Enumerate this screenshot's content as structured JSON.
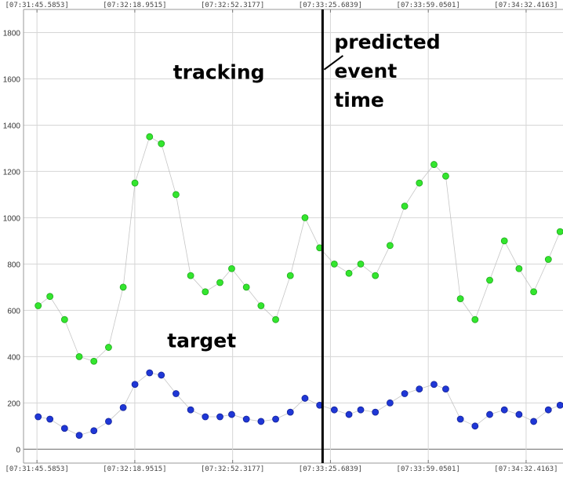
{
  "chart_data": {
    "type": "scatter",
    "title": "",
    "xlabel": "",
    "ylabel": "",
    "x_ticks": [
      "[07:31:45.5853]",
      "[07:32:18.9515]",
      "[07:32:52.3177]",
      "[07:33:25.6839]",
      "[07:33:59.0501]",
      "[07:34:32.4163]"
    ],
    "xlim": [
      "07:31:41",
      "07:34:45"
    ],
    "ylim": [
      -60,
      1900
    ],
    "y_ticks": [
      0,
      200,
      400,
      600,
      800,
      1000,
      1200,
      1400,
      1600,
      1800
    ],
    "grid": true,
    "legend": "none",
    "marker_event_x": "07:33:23",
    "marker_event_label": "predicted event time",
    "series": [
      {
        "name": "tracking",
        "color": "#33e62e",
        "edge_color": "#21a81e",
        "x": [
          "07:31:46",
          "07:31:50",
          "07:31:55",
          "07:32:00",
          "07:32:05",
          "07:32:10",
          "07:32:15",
          "07:32:19",
          "07:32:24",
          "07:32:28",
          "07:32:33",
          "07:32:38",
          "07:32:43",
          "07:32:48",
          "07:32:52",
          "07:32:57",
          "07:33:02",
          "07:33:07",
          "07:33:12",
          "07:33:17",
          "07:33:22",
          "07:33:27",
          "07:33:32",
          "07:33:36",
          "07:33:41",
          "07:33:46",
          "07:33:51",
          "07:33:56",
          "07:34:01",
          "07:34:05",
          "07:34:10",
          "07:34:15",
          "07:34:20",
          "07:34:25",
          "07:34:30",
          "07:34:35",
          "07:34:40",
          "07:34:44"
        ],
        "values": [
          620,
          660,
          560,
          400,
          380,
          440,
          700,
          1150,
          1350,
          1320,
          1100,
          750,
          680,
          720,
          780,
          700,
          620,
          560,
          750,
          1000,
          870,
          800,
          760,
          800,
          750,
          880,
          1050,
          1150,
          1230,
          1180,
          650,
          560,
          730,
          900,
          780,
          680,
          820,
          940
        ]
      },
      {
        "name": "target",
        "color": "#1f37d6",
        "edge_color": "#14239a",
        "x": [
          "07:31:46",
          "07:31:50",
          "07:31:55",
          "07:32:00",
          "07:32:05",
          "07:32:10",
          "07:32:15",
          "07:32:19",
          "07:32:24",
          "07:32:28",
          "07:32:33",
          "07:32:38",
          "07:32:43",
          "07:32:48",
          "07:32:52",
          "07:32:57",
          "07:33:02",
          "07:33:07",
          "07:33:12",
          "07:33:17",
          "07:33:22",
          "07:33:27",
          "07:33:32",
          "07:33:36",
          "07:33:41",
          "07:33:46",
          "07:33:51",
          "07:33:56",
          "07:34:01",
          "07:34:05",
          "07:34:10",
          "07:34:15",
          "07:34:20",
          "07:34:25",
          "07:34:30",
          "07:34:35",
          "07:34:40",
          "07:34:44"
        ],
        "values": [
          140,
          130,
          90,
          60,
          80,
          120,
          180,
          280,
          330,
          320,
          240,
          170,
          140,
          140,
          150,
          130,
          120,
          130,
          160,
          220,
          190,
          170,
          150,
          170,
          160,
          200,
          240,
          260,
          280,
          260,
          130,
          100,
          150,
          170,
          150,
          120,
          170,
          190
        ]
      }
    ],
    "annotations": [
      {
        "text": "tracking",
        "x": "07:32:32",
        "y": 1600
      },
      {
        "text": "target",
        "x": "07:32:30",
        "y": 440
      },
      {
        "text": "predicted",
        "x": "07:33:27",
        "y": 1730
      },
      {
        "text": "event",
        "x": "07:33:27",
        "y": 1605
      },
      {
        "text": "time",
        "x": "07:33:27",
        "y": 1480
      }
    ]
  }
}
